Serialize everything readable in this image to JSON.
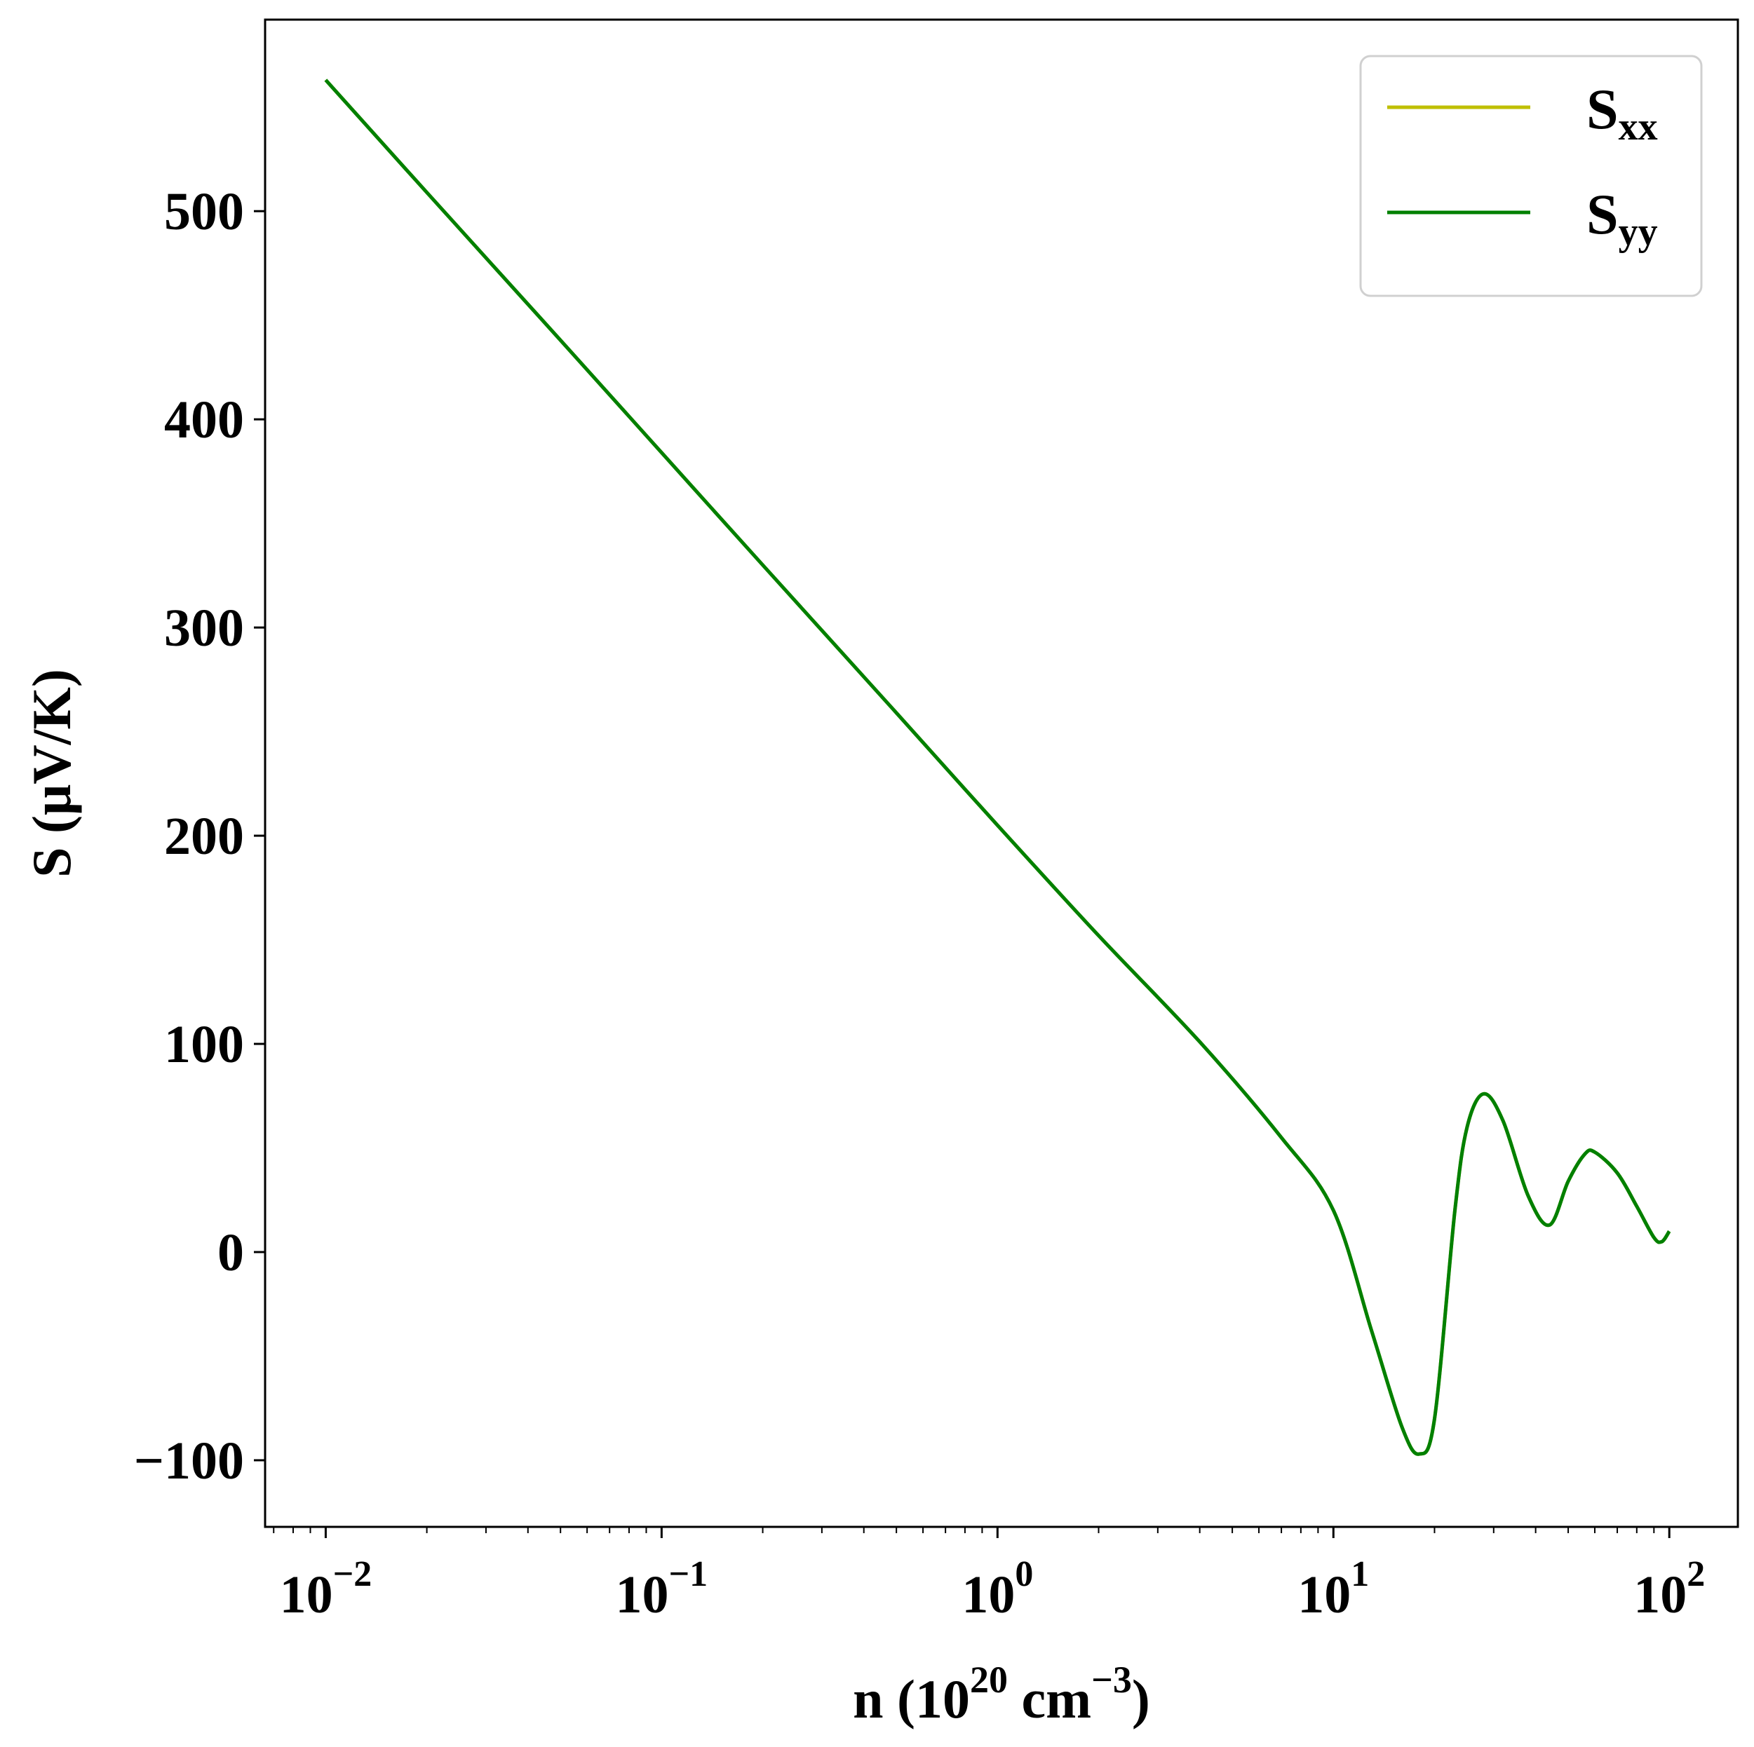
{
  "chart_data": {
    "type": "line",
    "xscale": "log",
    "xlim": [
      0.0066,
      160
    ],
    "ylim": [
      -132,
      592
    ],
    "xticks": [
      {
        "value": 0.01,
        "base": "10",
        "exp": "−2"
      },
      {
        "value": 0.1,
        "base": "10",
        "exp": "−1"
      },
      {
        "value": 1,
        "base": "10",
        "exp": "0"
      },
      {
        "value": 10,
        "base": "10",
        "exp": "1"
      },
      {
        "value": 100,
        "base": "10",
        "exp": "2"
      }
    ],
    "yticks": [
      {
        "value": -100,
        "label": "−100"
      },
      {
        "value": 0,
        "label": "0"
      },
      {
        "value": 100,
        "label": "100"
      },
      {
        "value": 200,
        "label": "200"
      },
      {
        "value": 300,
        "label": "300"
      },
      {
        "value": 400,
        "label": "400"
      },
      {
        "value": 500,
        "label": "500"
      }
    ],
    "xlabel": {
      "pre": "n (10",
      "sup1": "20",
      "mid": " cm",
      "sup2": "−3",
      "post": ")"
    },
    "ylabel": "S (μV/K)",
    "legend_position": "top-right",
    "grid": false,
    "series": [
      {
        "name": "S",
        "sub": "xx",
        "color": "#bfbf00",
        "x": [
          0.01,
          0.02,
          0.05,
          0.1,
          0.2,
          0.5,
          1,
          2,
          4,
          7,
          10,
          13,
          16,
          18,
          20,
          23,
          25,
          28,
          32,
          38,
          44,
          50,
          56,
          60,
          70,
          80,
          90,
          95,
          100
        ],
        "y": [
          563,
          509,
          438,
          384,
          330,
          259,
          205,
          152,
          101,
          55,
          20,
          -38,
          -84,
          -97,
          -80,
          20,
          60,
          76,
          63,
          27,
          13,
          34,
          47,
          48,
          38,
          22,
          7,
          5,
          10
        ]
      },
      {
        "name": "S",
        "sub": "yy",
        "color": "#008000",
        "x": [
          0.01,
          0.02,
          0.05,
          0.1,
          0.2,
          0.5,
          1,
          2,
          4,
          7,
          10,
          13,
          16,
          18,
          20,
          23,
          25,
          28,
          32,
          38,
          44,
          50,
          56,
          60,
          70,
          80,
          90,
          95,
          100
        ],
        "y": [
          563,
          509,
          438,
          384,
          330,
          259,
          205,
          152,
          101,
          55,
          20,
          -38,
          -84,
          -97,
          -80,
          20,
          60,
          76,
          63,
          27,
          13,
          34,
          47,
          48,
          38,
          22,
          7,
          5,
          10
        ]
      }
    ]
  }
}
